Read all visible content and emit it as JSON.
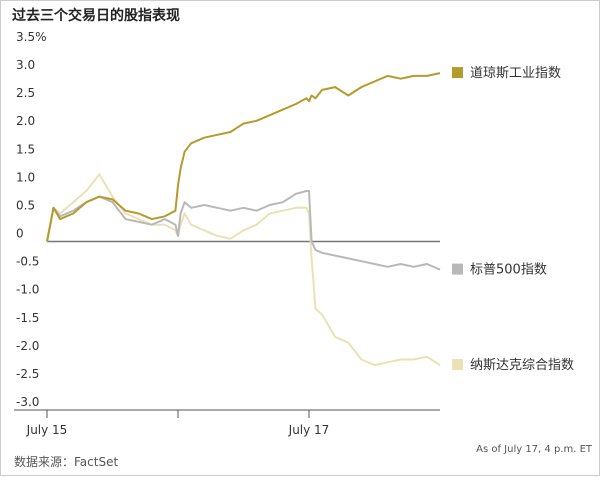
{
  "chart_data": {
    "type": "line",
    "title": "过去三个交易日的股指表现",
    "source": "数据来源：FactSet",
    "note": "As of July 17, 4 p.m. ET",
    "x": [
      0,
      0.05,
      0.1,
      0.2,
      0.3,
      0.4,
      0.5,
      0.6,
      0.7,
      0.8,
      0.9,
      0.98,
      1.0,
      1.02,
      1.05,
      1.1,
      1.2,
      1.3,
      1.4,
      1.5,
      1.6,
      1.7,
      1.8,
      1.9,
      1.98,
      2.0,
      2.02,
      2.05,
      2.1,
      2.2,
      2.3,
      2.4,
      2.5,
      2.6,
      2.7,
      2.8,
      2.9,
      3.0
    ],
    "series": [
      {
        "name": "道琼斯工业指数",
        "color": "#b59a2c",
        "values": [
          0,
          0.6,
          0.4,
          0.5,
          0.7,
          0.8,
          0.75,
          0.55,
          0.5,
          0.4,
          0.45,
          0.55,
          1.0,
          1.3,
          1.6,
          1.75,
          1.85,
          1.9,
          1.95,
          2.1,
          2.15,
          2.25,
          2.35,
          2.45,
          2.55,
          2.5,
          2.6,
          2.55,
          2.7,
          2.75,
          2.6,
          2.75,
          2.85,
          2.95,
          2.9,
          2.95,
          2.95,
          3.0
        ]
      },
      {
        "name": "标普500指数",
        "color": "#b8b8b8",
        "values": [
          0,
          0.6,
          0.45,
          0.55,
          0.7,
          0.8,
          0.7,
          0.4,
          0.35,
          0.3,
          0.4,
          0.3,
          0.1,
          0.5,
          0.7,
          0.6,
          0.65,
          0.6,
          0.55,
          0.6,
          0.55,
          0.65,
          0.7,
          0.85,
          0.9,
          0.9,
          0.0,
          -0.15,
          -0.2,
          -0.25,
          -0.3,
          -0.35,
          -0.4,
          -0.45,
          -0.4,
          -0.45,
          -0.4,
          -0.5
        ]
      },
      {
        "name": "纳斯达克综合指数",
        "color": "#ece1b5",
        "values": [
          0,
          0.6,
          0.5,
          0.7,
          0.9,
          1.2,
          0.8,
          0.5,
          0.4,
          0.3,
          0.3,
          0.2,
          0.1,
          0.3,
          0.5,
          0.3,
          0.2,
          0.1,
          0.05,
          0.2,
          0.3,
          0.5,
          0.55,
          0.6,
          0.6,
          0.5,
          -0.3,
          -1.2,
          -1.3,
          -1.7,
          -1.8,
          -2.1,
          -2.2,
          -2.15,
          -2.1,
          -2.1,
          -2.05,
          -2.2
        ]
      }
    ],
    "xlim": [
      0,
      3
    ],
    "xticks": [
      {
        "value": 0,
        "label": "July 15"
      },
      {
        "value": 1,
        "label": null
      },
      {
        "value": 2,
        "label": "July 17"
      }
    ],
    "ylim": [
      -3,
      3.5
    ],
    "yticks": [
      {
        "value": 3.5,
        "label": "3.5%"
      },
      {
        "value": 3,
        "label": "3.0"
      },
      2.5,
      {
        "value": 2,
        "label": "2.0"
      },
      1.5,
      {
        "value": 1,
        "label": "1.0"
      },
      0.5,
      0,
      -0.5,
      {
        "value": -1,
        "label": "-1.0"
      },
      -1.5,
      {
        "value": -2,
        "label": "-2.0"
      },
      -2.5,
      {
        "value": -3,
        "label": "-3.0"
      }
    ],
    "grid": false
  }
}
